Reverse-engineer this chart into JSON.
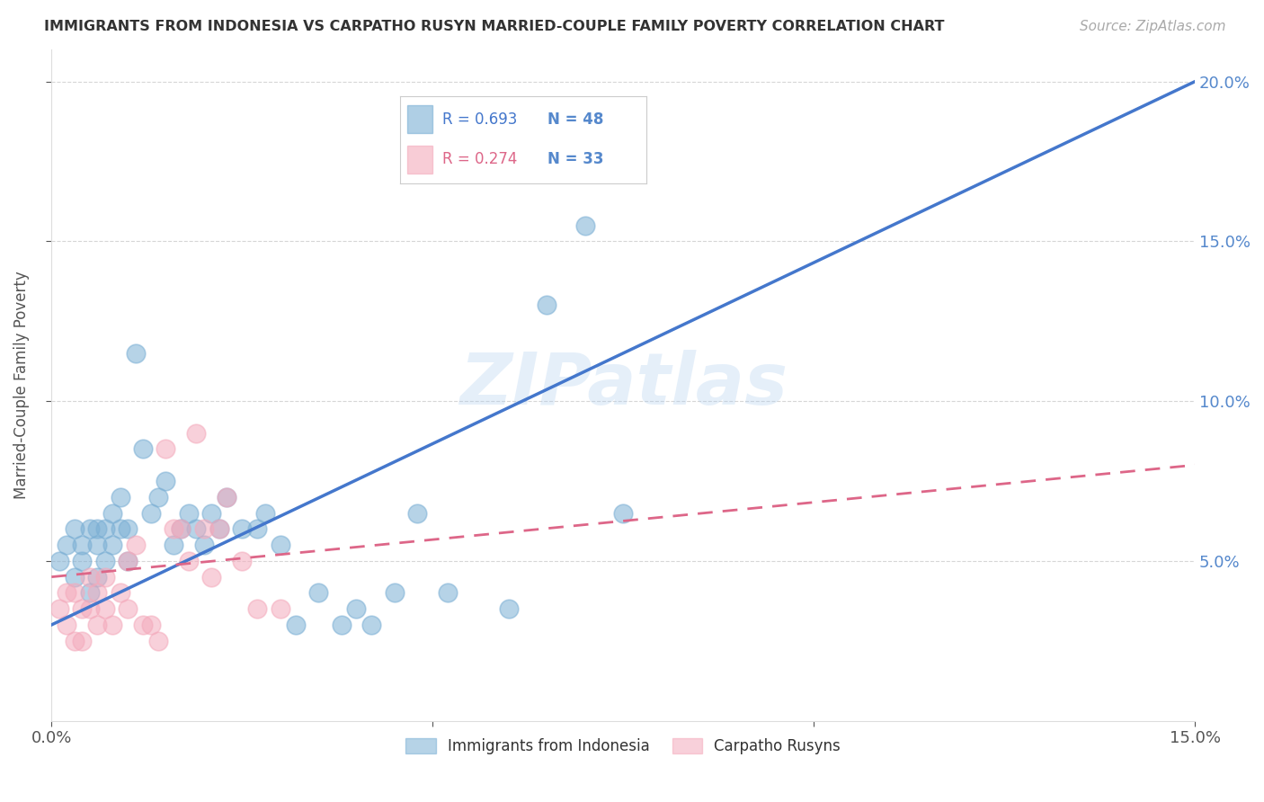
{
  "title": "IMMIGRANTS FROM INDONESIA VS CARPATHO RUSYN MARRIED-COUPLE FAMILY POVERTY CORRELATION CHART",
  "source": "Source: ZipAtlas.com",
  "ylabel": "Married-Couple Family Poverty",
  "xlim": [
    0.0,
    0.15
  ],
  "ylim": [
    0.0,
    0.21
  ],
  "y_ticks_right": [
    0.05,
    0.1,
    0.15,
    0.2
  ],
  "y_tick_labels_right": [
    "5.0%",
    "10.0%",
    "15.0%",
    "20.0%"
  ],
  "series1_label": "Immigrants from Indonesia",
  "series1_color": "#7BAFD4",
  "series1_line_color": "#4477CC",
  "series1_R": 0.693,
  "series1_N": 48,
  "series2_label": "Carpatho Rusyns",
  "series2_color": "#F4AABC",
  "series2_line_color": "#DD6688",
  "series2_R": 0.274,
  "series2_N": 33,
  "watermark": "ZIPatlas",
  "background_color": "#ffffff",
  "grid_color": "#cccccc",
  "title_color": "#333333",
  "right_axis_color": "#5588CC",
  "scatter1_x": [
    0.001,
    0.002,
    0.003,
    0.003,
    0.004,
    0.004,
    0.005,
    0.005,
    0.006,
    0.006,
    0.006,
    0.007,
    0.007,
    0.008,
    0.008,
    0.009,
    0.009,
    0.01,
    0.01,
    0.011,
    0.012,
    0.013,
    0.014,
    0.015,
    0.016,
    0.017,
    0.018,
    0.019,
    0.02,
    0.021,
    0.022,
    0.023,
    0.025,
    0.027,
    0.028,
    0.03,
    0.032,
    0.035,
    0.038,
    0.04,
    0.042,
    0.045,
    0.048,
    0.052,
    0.06,
    0.065,
    0.07,
    0.075
  ],
  "scatter1_y": [
    0.05,
    0.055,
    0.045,
    0.06,
    0.05,
    0.055,
    0.04,
    0.06,
    0.045,
    0.055,
    0.06,
    0.05,
    0.06,
    0.055,
    0.065,
    0.06,
    0.07,
    0.05,
    0.06,
    0.115,
    0.085,
    0.065,
    0.07,
    0.075,
    0.055,
    0.06,
    0.065,
    0.06,
    0.055,
    0.065,
    0.06,
    0.07,
    0.06,
    0.06,
    0.065,
    0.055,
    0.03,
    0.04,
    0.03,
    0.035,
    0.03,
    0.04,
    0.065,
    0.04,
    0.035,
    0.13,
    0.155,
    0.065
  ],
  "scatter2_x": [
    0.001,
    0.002,
    0.002,
    0.003,
    0.003,
    0.004,
    0.004,
    0.005,
    0.005,
    0.006,
    0.006,
    0.007,
    0.007,
    0.008,
    0.009,
    0.01,
    0.01,
    0.011,
    0.012,
    0.013,
    0.014,
    0.015,
    0.016,
    0.017,
    0.018,
    0.019,
    0.02,
    0.021,
    0.022,
    0.023,
    0.025,
    0.027,
    0.03
  ],
  "scatter2_y": [
    0.035,
    0.03,
    0.04,
    0.025,
    0.04,
    0.035,
    0.025,
    0.045,
    0.035,
    0.03,
    0.04,
    0.035,
    0.045,
    0.03,
    0.04,
    0.035,
    0.05,
    0.055,
    0.03,
    0.03,
    0.025,
    0.085,
    0.06,
    0.06,
    0.05,
    0.09,
    0.06,
    0.045,
    0.06,
    0.07,
    0.05,
    0.035,
    0.035
  ],
  "trend1_x": [
    0.0,
    0.15
  ],
  "trend1_y": [
    0.03,
    0.2
  ],
  "trend2_x": [
    0.0,
    0.15
  ],
  "trend2_y": [
    0.045,
    0.08
  ]
}
